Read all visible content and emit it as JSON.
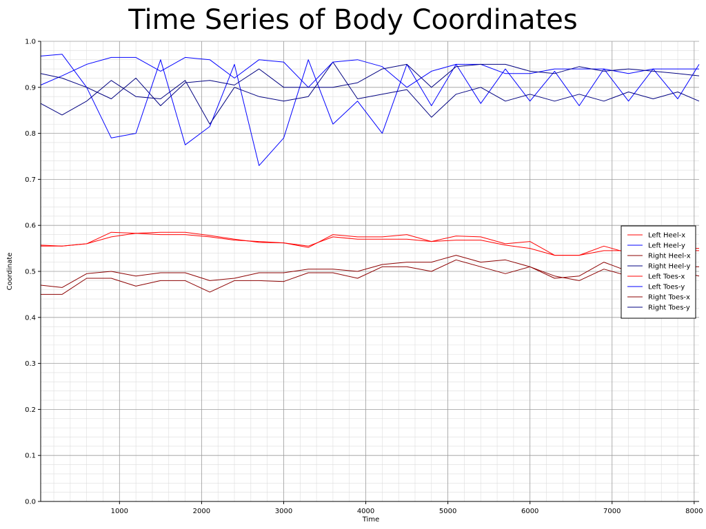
{
  "chart_data": {
    "type": "line",
    "title": "Time Series of Body Coordinates",
    "xlabel": "Time",
    "ylabel": "Coordinate",
    "xlim": [
      40,
      8060
    ],
    "ylim": [
      0.0,
      1.0
    ],
    "x_ticks": [
      1000,
      2000,
      3000,
      4000,
      5000,
      6000,
      7000,
      8000
    ],
    "y_ticks": [
      0.0,
      0.1,
      0.2,
      0.3,
      0.4,
      0.5,
      0.6,
      0.7,
      0.8,
      0.9,
      1.0
    ],
    "grid": true,
    "minor_grid": true,
    "legend_position": "right",
    "x": [
      40,
      300,
      600,
      900,
      1200,
      1500,
      1800,
      2100,
      2400,
      2700,
      3000,
      3300,
      3600,
      3900,
      4200,
      4500,
      4800,
      5100,
      5400,
      5700,
      6000,
      6300,
      6600,
      6900,
      7200,
      7500,
      7800,
      8060
    ],
    "series": [
      {
        "name": "Left Heel-x",
        "color": "#ff0000",
        "values": [
          0.555,
          0.555,
          0.56,
          0.585,
          0.583,
          0.585,
          0.585,
          0.578,
          0.57,
          0.563,
          0.562,
          0.552,
          0.58,
          0.575,
          0.575,
          0.58,
          0.565,
          0.577,
          0.575,
          0.56,
          0.565,
          0.535,
          0.535,
          0.555,
          0.54,
          0.545,
          0.545,
          0.545
        ]
      },
      {
        "name": "Left Heel-y",
        "color": "#0000ff",
        "values": [
          0.968,
          0.972,
          0.9,
          0.79,
          0.8,
          0.96,
          0.775,
          0.815,
          0.95,
          0.73,
          0.79,
          0.96,
          0.82,
          0.87,
          0.8,
          0.95,
          0.86,
          0.95,
          0.865,
          0.94,
          0.87,
          0.935,
          0.86,
          0.94,
          0.87,
          0.94,
          0.875,
          0.95
        ]
      },
      {
        "name": "Right Heel-x",
        "color": "#8b0000",
        "values": [
          0.47,
          0.465,
          0.495,
          0.5,
          0.49,
          0.497,
          0.497,
          0.48,
          0.485,
          0.497,
          0.497,
          0.505,
          0.505,
          0.5,
          0.515,
          0.52,
          0.52,
          0.535,
          0.52,
          0.525,
          0.51,
          0.485,
          0.49,
          0.52,
          0.5,
          0.51,
          0.51,
          0.51
        ]
      },
      {
        "name": "Right Heel-y",
        "color": "#000080",
        "values": [
          0.865,
          0.84,
          0.87,
          0.915,
          0.88,
          0.875,
          0.915,
          0.82,
          0.9,
          0.88,
          0.87,
          0.88,
          0.955,
          0.875,
          0.885,
          0.895,
          0.835,
          0.885,
          0.9,
          0.87,
          0.885,
          0.87,
          0.885,
          0.87,
          0.89,
          0.875,
          0.89,
          0.87
        ]
      },
      {
        "name": "Left Toes-x",
        "color": "#ff0000",
        "values": [
          0.557,
          0.555,
          0.56,
          0.575,
          0.583,
          0.58,
          0.58,
          0.575,
          0.568,
          0.565,
          0.562,
          0.555,
          0.575,
          0.57,
          0.57,
          0.57,
          0.565,
          0.568,
          0.568,
          0.557,
          0.55,
          0.535,
          0.535,
          0.545,
          0.545,
          0.545,
          0.55,
          0.55
        ]
      },
      {
        "name": "Left Toes-y",
        "color": "#0000ff",
        "values": [
          0.905,
          0.925,
          0.95,
          0.965,
          0.965,
          0.935,
          0.965,
          0.96,
          0.92,
          0.96,
          0.955,
          0.9,
          0.955,
          0.96,
          0.945,
          0.9,
          0.935,
          0.95,
          0.95,
          0.93,
          0.93,
          0.94,
          0.94,
          0.94,
          0.93,
          0.94,
          0.94,
          0.94
        ]
      },
      {
        "name": "Right Toes-x",
        "color": "#8b0000",
        "values": [
          0.45,
          0.45,
          0.485,
          0.485,
          0.468,
          0.48,
          0.48,
          0.455,
          0.48,
          0.48,
          0.478,
          0.497,
          0.497,
          0.485,
          0.51,
          0.51,
          0.5,
          0.525,
          0.51,
          0.495,
          0.51,
          0.49,
          0.48,
          0.505,
          0.49,
          0.49,
          0.5,
          0.49
        ]
      },
      {
        "name": "Right Toes-y",
        "color": "#000080",
        "values": [
          0.93,
          0.92,
          0.9,
          0.875,
          0.92,
          0.86,
          0.91,
          0.915,
          0.905,
          0.94,
          0.9,
          0.9,
          0.9,
          0.91,
          0.94,
          0.95,
          0.9,
          0.945,
          0.95,
          0.95,
          0.935,
          0.93,
          0.945,
          0.935,
          0.94,
          0.935,
          0.93,
          0.925
        ]
      }
    ]
  }
}
